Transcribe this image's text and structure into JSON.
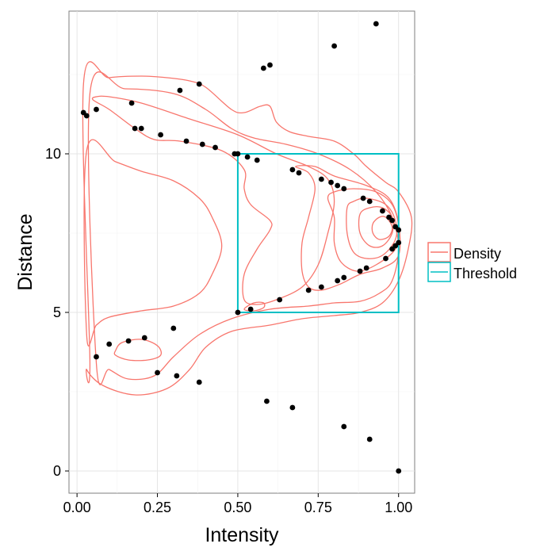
{
  "chart_data": {
    "type": "scatter",
    "title": "",
    "xlabel": "Intensity",
    "ylabel": "Distance",
    "xlim": [
      -0.025,
      1.05
    ],
    "ylim": [
      -0.7,
      14.5
    ],
    "x_ticks": [
      {
        "value": 0.0,
        "label": "0.00"
      },
      {
        "value": 0.25,
        "label": "0.25"
      },
      {
        "value": 0.5,
        "label": "0.50"
      },
      {
        "value": 0.75,
        "label": "0.75"
      },
      {
        "value": 1.0,
        "label": "1.00"
      }
    ],
    "y_ticks": [
      {
        "value": 0,
        "label": "0"
      },
      {
        "value": 5,
        "label": "5"
      },
      {
        "value": 10,
        "label": "10"
      }
    ],
    "grid": true,
    "legend": {
      "position": "right",
      "entries": [
        {
          "label": "Density",
          "color": "#F8766D"
        },
        {
          "label": "Threshold",
          "color": "#00BFC4"
        }
      ]
    },
    "threshold_rect": {
      "x": [
        0.5,
        1.0
      ],
      "y": [
        5,
        10
      ]
    },
    "points": [
      [
        0.02,
        11.3
      ],
      [
        0.03,
        11.2
      ],
      [
        0.06,
        11.4
      ],
      [
        0.17,
        11.6
      ],
      [
        0.18,
        10.8
      ],
      [
        0.2,
        10.8
      ],
      [
        0.26,
        10.6
      ],
      [
        0.32,
        12.0
      ],
      [
        0.34,
        10.4
      ],
      [
        0.38,
        12.2
      ],
      [
        0.39,
        10.3
      ],
      [
        0.43,
        10.2
      ],
      [
        0.49,
        10.0
      ],
      [
        0.5,
        10.0
      ],
      [
        0.53,
        9.9
      ],
      [
        0.56,
        9.8
      ],
      [
        0.58,
        12.7
      ],
      [
        0.6,
        12.8
      ],
      [
        0.67,
        9.5
      ],
      [
        0.69,
        9.4
      ],
      [
        0.76,
        9.2
      ],
      [
        0.79,
        9.1
      ],
      [
        0.8,
        13.4
      ],
      [
        0.81,
        9.0
      ],
      [
        0.83,
        8.9
      ],
      [
        0.89,
        8.6
      ],
      [
        0.91,
        8.5
      ],
      [
        0.93,
        14.1
      ],
      [
        0.95,
        8.2
      ],
      [
        0.97,
        8.0
      ],
      [
        0.98,
        7.9
      ],
      [
        0.99,
        7.7
      ],
      [
        1.0,
        7.6
      ],
      [
        1.0,
        7.2
      ],
      [
        0.99,
        7.1
      ],
      [
        0.98,
        7.0
      ],
      [
        0.96,
        6.7
      ],
      [
        0.9,
        6.4
      ],
      [
        0.88,
        6.3
      ],
      [
        0.83,
        6.1
      ],
      [
        0.81,
        6.0
      ],
      [
        0.76,
        5.8
      ],
      [
        0.72,
        5.7
      ],
      [
        0.63,
        5.4
      ],
      [
        0.54,
        5.1
      ],
      [
        0.5,
        5.0
      ],
      [
        0.06,
        3.6
      ],
      [
        0.1,
        4.0
      ],
      [
        0.16,
        4.1
      ],
      [
        0.21,
        4.2
      ],
      [
        0.3,
        4.5
      ],
      [
        0.25,
        3.1
      ],
      [
        0.31,
        3.0
      ],
      [
        0.38,
        2.8
      ],
      [
        0.59,
        2.2
      ],
      [
        0.67,
        2.0
      ],
      [
        0.83,
        1.4
      ],
      [
        0.91,
        1.0
      ],
      [
        1.0,
        0.0
      ]
    ],
    "density_contours": [
      [
        [
          0.02,
          12.2
        ],
        [
          0.1,
          12.4
        ],
        [
          0.2,
          12.45
        ],
        [
          0.28,
          12.4
        ],
        [
          0.35,
          12.3
        ],
        [
          0.4,
          12.1
        ],
        [
          0.48,
          11.4
        ],
        [
          0.52,
          11.3
        ],
        [
          0.57,
          11.5
        ],
        [
          0.6,
          11.5
        ],
        [
          0.62,
          11.0
        ],
        [
          0.66,
          10.7
        ],
        [
          0.72,
          10.55
        ],
        [
          0.8,
          10.4
        ],
        [
          0.86,
          10.0
        ],
        [
          0.9,
          9.6
        ],
        [
          0.96,
          9.1
        ],
        [
          1.0,
          8.8
        ],
        [
          1.04,
          8.0
        ],
        [
          1.03,
          7.0
        ],
        [
          1.0,
          6.0
        ],
        [
          0.95,
          5.3
        ],
        [
          0.88,
          5.0
        ],
        [
          0.8,
          4.9
        ],
        [
          0.7,
          4.8
        ],
        [
          0.6,
          4.6
        ],
        [
          0.48,
          4.4
        ],
        [
          0.4,
          3.9
        ],
        [
          0.35,
          3.2
        ],
        [
          0.28,
          2.6
        ],
        [
          0.18,
          2.4
        ],
        [
          0.08,
          2.7
        ],
        [
          0.03,
          3.2
        ],
        [
          0.04,
          3.5
        ]
      ],
      [
        [
          0.04,
          11.9
        ],
        [
          0.15,
          12.05
        ],
        [
          0.3,
          11.9
        ],
        [
          0.4,
          11.4
        ],
        [
          0.48,
          10.8
        ],
        [
          0.55,
          10.5
        ],
        [
          0.65,
          10.3
        ],
        [
          0.75,
          10.0
        ],
        [
          0.85,
          9.5
        ],
        [
          0.93,
          8.8
        ],
        [
          0.98,
          8.0
        ],
        [
          1.0,
          7.0
        ],
        [
          0.98,
          6.0
        ],
        [
          0.94,
          5.6
        ],
        [
          0.88,
          5.35
        ],
        [
          0.8,
          5.3
        ],
        [
          0.72,
          5.2
        ],
        [
          0.6,
          5.1
        ],
        [
          0.48,
          4.8
        ],
        [
          0.38,
          4.3
        ],
        [
          0.3,
          3.6
        ],
        [
          0.24,
          3.0
        ],
        [
          0.16,
          2.9
        ],
        [
          0.1,
          3.2
        ],
        [
          0.06,
          3.4
        ]
      ],
      [
        [
          0.03,
          10.1
        ],
        [
          0.12,
          9.75
        ],
        [
          0.2,
          9.45
        ],
        [
          0.3,
          9.15
        ],
        [
          0.38,
          8.6
        ],
        [
          0.42,
          8.0
        ],
        [
          0.45,
          7.1
        ],
        [
          0.42,
          6.2
        ],
        [
          0.38,
          5.6
        ],
        [
          0.3,
          5.2
        ],
        [
          0.2,
          5.05
        ],
        [
          0.1,
          4.85
        ],
        [
          0.06,
          4.6
        ],
        [
          0.03,
          4.3
        ]
      ],
      [
        [
          0.05,
          11.7
        ],
        [
          0.1,
          11.4
        ],
        [
          0.18,
          10.8
        ],
        [
          0.24,
          10.45
        ],
        [
          0.32,
          10.4
        ],
        [
          0.45,
          10.1
        ],
        [
          0.52,
          9.5
        ],
        [
          0.52,
          8.9
        ],
        [
          0.54,
          8.4
        ],
        [
          0.6,
          7.9
        ],
        [
          0.6,
          7.6
        ],
        [
          0.56,
          7.0
        ],
        [
          0.52,
          6.2
        ],
        [
          0.52,
          5.4
        ],
        [
          0.56,
          5.25
        ],
        [
          0.62,
          5.4
        ],
        [
          0.7,
          5.8
        ],
        [
          0.75,
          6.5
        ],
        [
          0.78,
          7.5
        ],
        [
          0.8,
          8.5
        ],
        [
          0.78,
          9.2
        ],
        [
          0.72,
          9.6
        ],
        [
          0.62,
          10.0
        ],
        [
          0.5,
          10.6
        ],
        [
          0.35,
          11.1
        ],
        [
          0.2,
          11.6
        ],
        [
          0.1,
          11.8
        ],
        [
          0.06,
          11.8
        ]
      ],
      [
        [
          0.68,
          9.6
        ],
        [
          0.72,
          9.4
        ],
        [
          0.74,
          8.9
        ],
        [
          0.72,
          8.0
        ],
        [
          0.7,
          7.2
        ],
        [
          0.7,
          6.3
        ],
        [
          0.72,
          5.8
        ],
        [
          0.76,
          5.7
        ],
        [
          0.82,
          5.9
        ],
        [
          0.88,
          6.2
        ],
        [
          0.95,
          6.4
        ],
        [
          1.0,
          6.8
        ],
        [
          1.0,
          7.8
        ],
        [
          0.97,
          8.6
        ],
        [
          0.9,
          9.0
        ],
        [
          0.8,
          9.3
        ],
        [
          0.74,
          9.6
        ]
      ],
      [
        [
          0.78,
          8.6
        ],
        [
          0.8,
          8.0
        ],
        [
          0.8,
          7.2
        ],
        [
          0.82,
          6.6
        ],
        [
          0.87,
          6.3
        ],
        [
          0.93,
          6.5
        ],
        [
          0.99,
          7.0
        ],
        [
          1.0,
          7.7
        ],
        [
          0.98,
          8.4
        ],
        [
          0.93,
          8.8
        ],
        [
          0.86,
          8.9
        ],
        [
          0.8,
          8.8
        ]
      ],
      [
        [
          0.84,
          8.3
        ],
        [
          0.84,
          7.5
        ],
        [
          0.86,
          6.9
        ],
        [
          0.9,
          6.7
        ],
        [
          0.95,
          6.8
        ],
        [
          0.99,
          7.3
        ],
        [
          0.99,
          7.9
        ],
        [
          0.96,
          8.4
        ],
        [
          0.9,
          8.6
        ],
        [
          0.86,
          8.5
        ]
      ],
      [
        [
          0.88,
          8.1
        ],
        [
          0.88,
          7.5
        ],
        [
          0.91,
          7.1
        ],
        [
          0.95,
          7.1
        ],
        [
          0.98,
          7.5
        ],
        [
          0.98,
          8.0
        ],
        [
          0.95,
          8.3
        ],
        [
          0.91,
          8.3
        ]
      ],
      [
        [
          0.92,
          7.8
        ],
        [
          0.92,
          7.5
        ],
        [
          0.94,
          7.3
        ],
        [
          0.97,
          7.4
        ],
        [
          0.98,
          7.7
        ],
        [
          0.96,
          8.0
        ],
        [
          0.94,
          8.0
        ]
      ],
      [
        [
          0.52,
          5.1
        ],
        [
          0.55,
          5.3
        ],
        [
          0.58,
          5.3
        ],
        [
          0.58,
          5.15
        ],
        [
          0.55,
          5.05
        ]
      ],
      [
        [
          0.12,
          3.8
        ],
        [
          0.14,
          4.05
        ],
        [
          0.2,
          4.15
        ],
        [
          0.25,
          3.95
        ],
        [
          0.26,
          3.65
        ],
        [
          0.22,
          3.5
        ],
        [
          0.16,
          3.5
        ],
        [
          0.12,
          3.65
        ]
      ]
    ]
  }
}
